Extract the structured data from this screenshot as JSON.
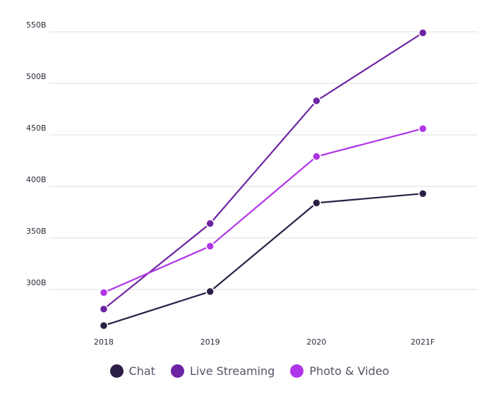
{
  "chart_data": {
    "type": "line",
    "categories": [
      "2018",
      "2019",
      "2020",
      "2021F"
    ],
    "series": [
      {
        "name": "Chat",
        "color": "#2c1f45",
        "values": [
          265,
          298,
          384,
          393
        ]
      },
      {
        "name": "Live Streaming",
        "color": "#6d24a3",
        "values": [
          281,
          364,
          483,
          549
        ]
      },
      {
        "name": "Photo & Video",
        "color": "#b035e8",
        "values": [
          297,
          342,
          429,
          456
        ]
      }
    ],
    "yticks": [
      300,
      350,
      400,
      450,
      500,
      550
    ],
    "ytick_labels": [
      "300B",
      "350B",
      "400B",
      "450B",
      "500B",
      "550B"
    ],
    "ylim": [
      245,
      560
    ],
    "grid": true,
    "legend_position": "bottom-center"
  }
}
